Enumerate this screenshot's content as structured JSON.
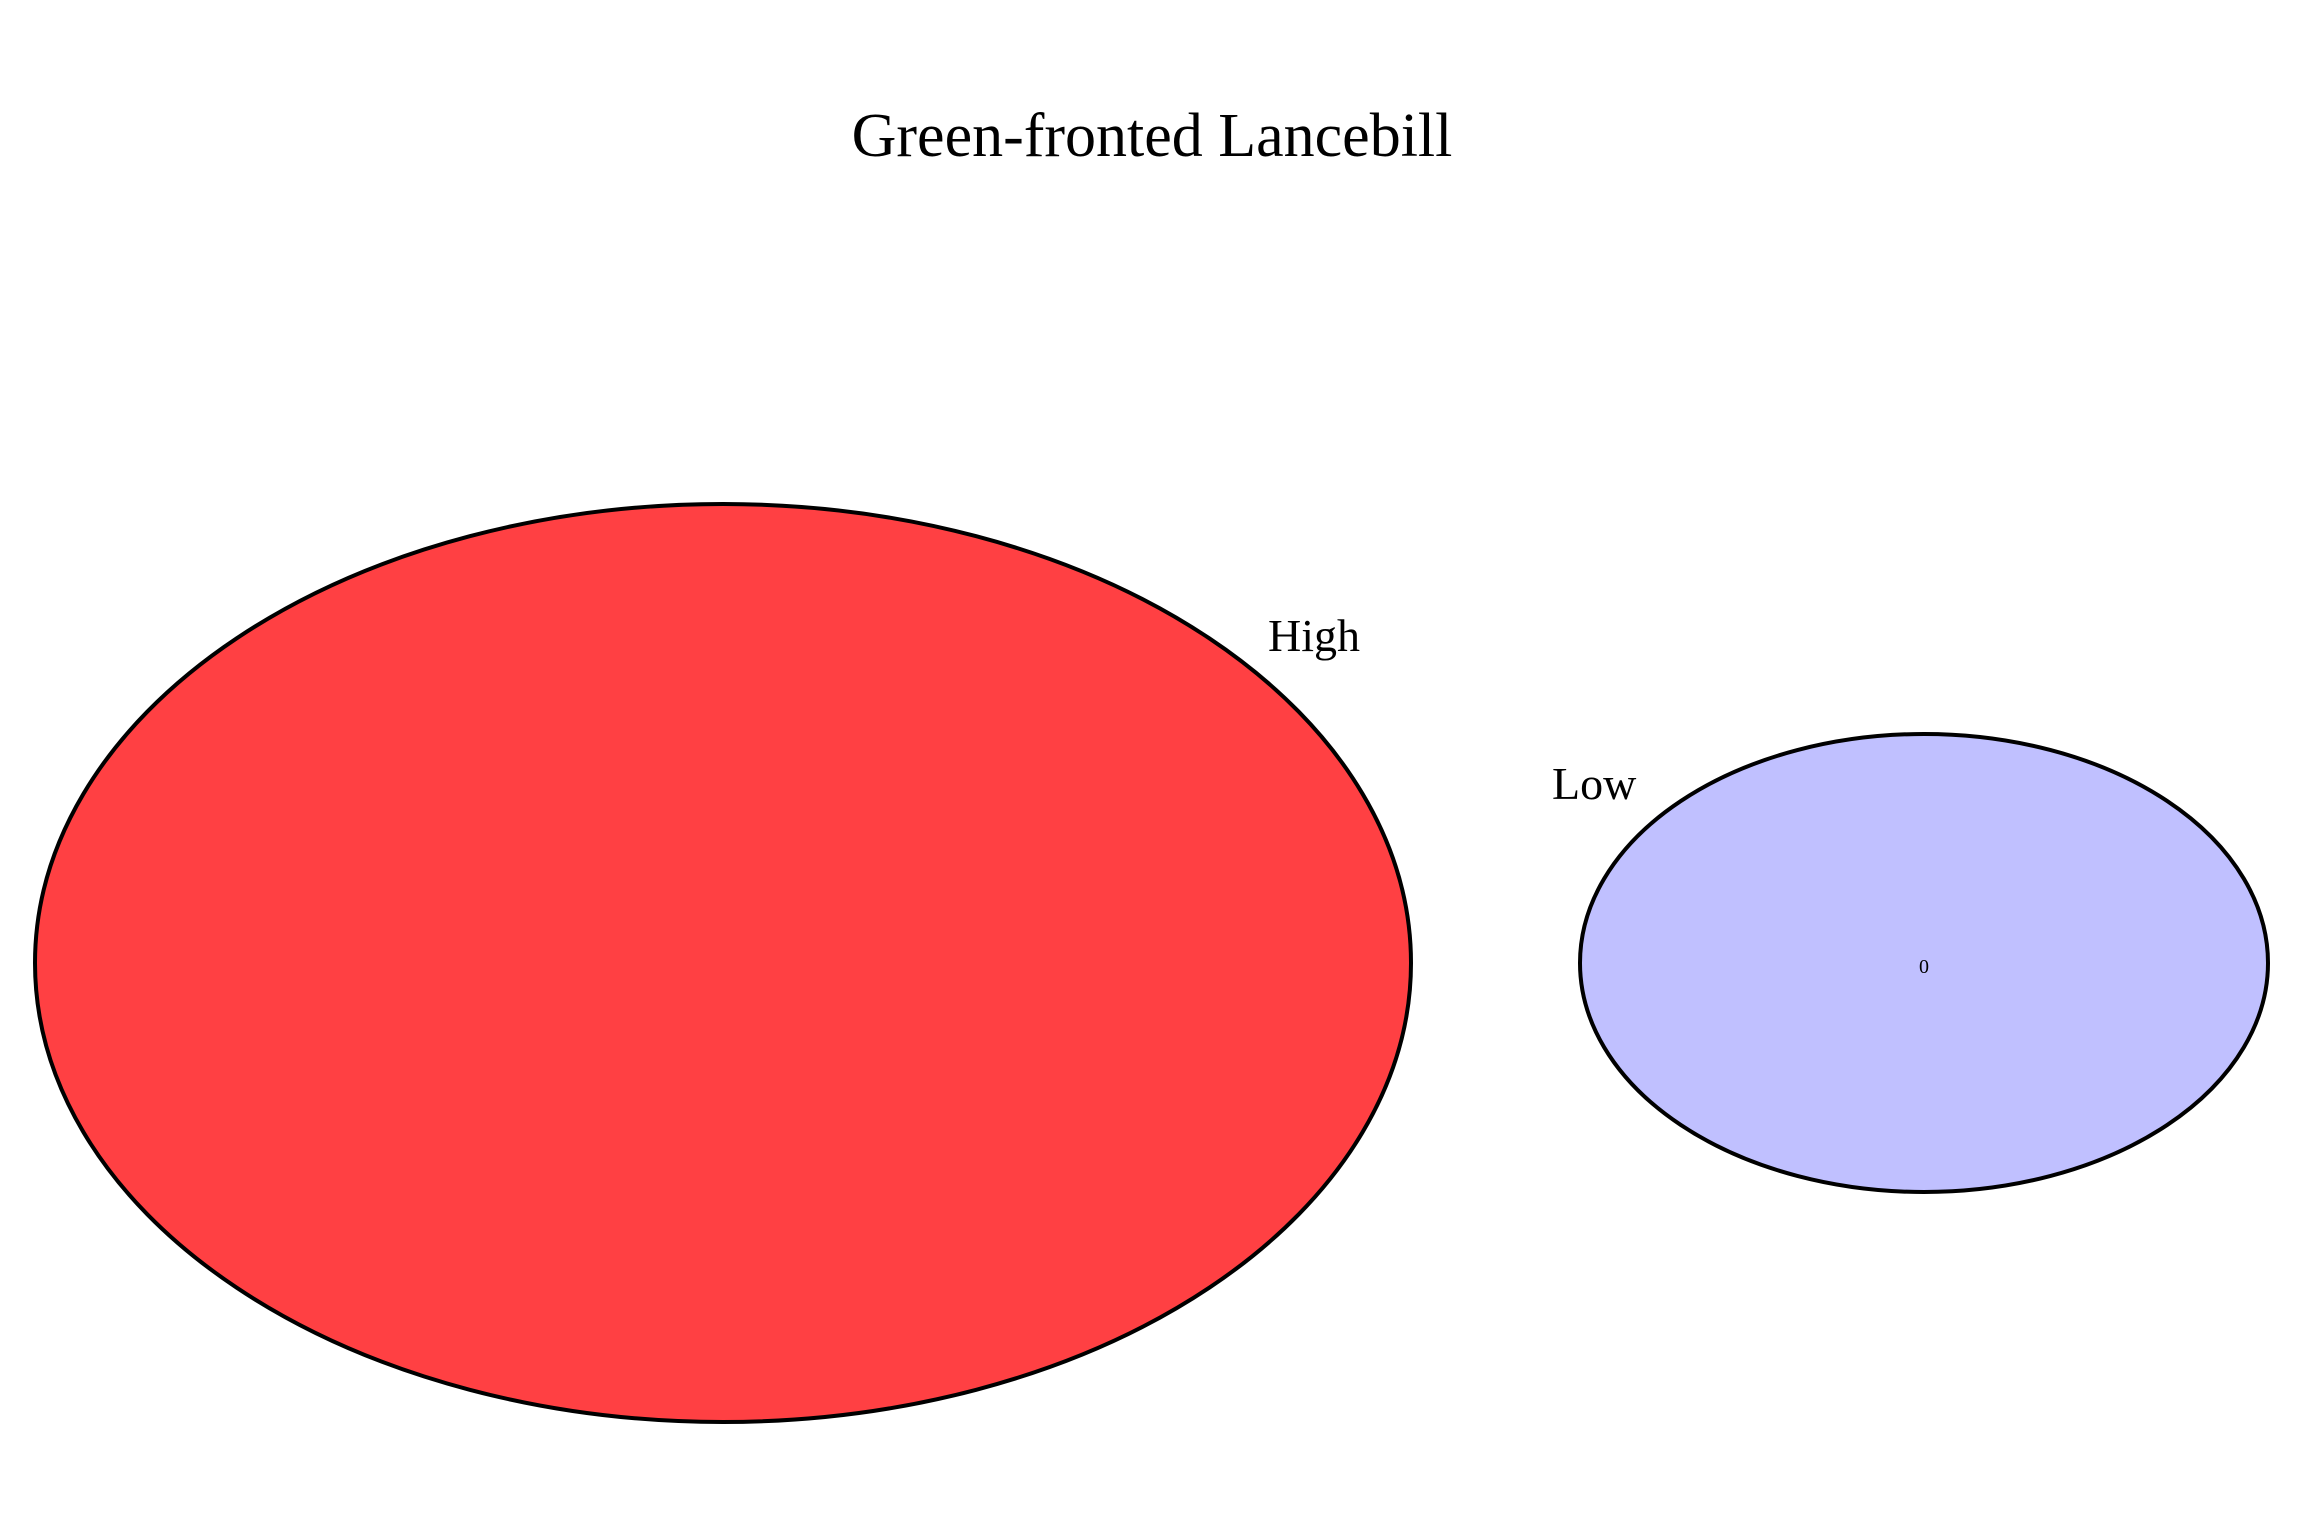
{
  "title": "Green-fronted Lancebill",
  "sets": [
    {
      "name": "High",
      "color": "#FF4043"
    },
    {
      "name": "Low",
      "color": "#C0C0FF",
      "count": "0"
    }
  ]
}
